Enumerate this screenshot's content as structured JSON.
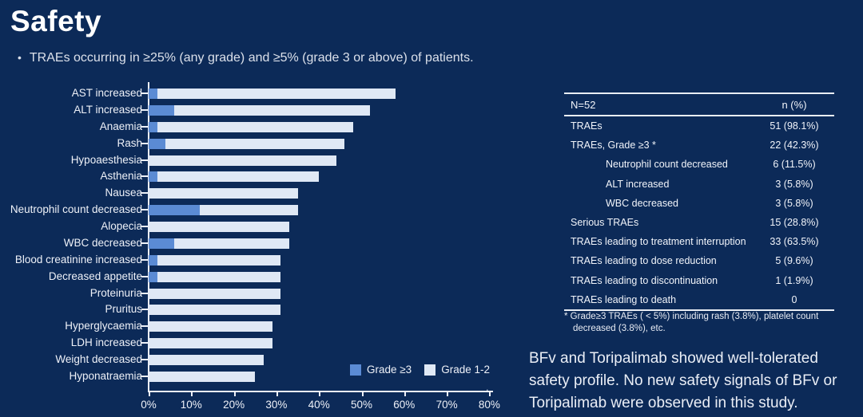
{
  "title": "Safety",
  "bullet": "TRAEs occurring in ≥25% (any grade) and ≥5% (grade 3 or above) of patients.",
  "bullet_marker": "•",
  "colors": {
    "background": "#0c2a58",
    "grade3_bar": "#5b8bd4",
    "grade12_bar": "#dfe8f5",
    "axis_line": "#e9edf4"
  },
  "chart_data": {
    "type": "bar",
    "orientation": "horizontal",
    "stacked": true,
    "title": "",
    "xlabel": "",
    "ylabel": "",
    "xlim": [
      0,
      80
    ],
    "x_tick_labels": [
      "0%",
      "10%",
      "20%",
      "30%",
      "40%",
      "50%",
      "60%",
      "70%",
      "80%"
    ],
    "grid": false,
    "legend_position": "bottom-right-inside",
    "categories": [
      "AST increased",
      "ALT increased",
      "Anaemia",
      "Rash",
      "Hypoaesthesia",
      "Asthenia",
      "Nausea",
      "Neutrophil count decreased",
      "Alopecia",
      "WBC decreased",
      "Blood creatinine increased",
      "Decreased appetite",
      "Proteinuria",
      "Pruritus",
      "Hyperglycaemia",
      "LDH increased",
      "Weight decreased",
      "Hyponatraemia"
    ],
    "series": [
      {
        "name": "Grade ≥3",
        "values": [
          2,
          6,
          2,
          4,
          0,
          2,
          0,
          12,
          0,
          6,
          2,
          2,
          0,
          0,
          0,
          0,
          0,
          0
        ]
      },
      {
        "name": "Grade 1-2",
        "values": [
          56,
          46,
          46,
          42,
          44,
          38,
          35,
          23,
          33,
          27,
          29,
          29,
          31,
          31,
          29,
          29,
          27,
          25
        ]
      }
    ],
    "totals_any_grade_pct": [
      58,
      52,
      48,
      46,
      44,
      40,
      35,
      35,
      33,
      33,
      31,
      31,
      31,
      31,
      29,
      29,
      27,
      25
    ]
  },
  "legend": {
    "items": [
      {
        "label": "Grade ≥3",
        "color": "#5b8bd4"
      },
      {
        "label": "Grade 1-2",
        "color": "#dfe8f5"
      }
    ]
  },
  "stray_mark": ".",
  "table": {
    "header": [
      "N=52",
      "n (%)"
    ],
    "rows": [
      {
        "label": "TRAEs",
        "value": "51 (98.1%)",
        "indent": 0
      },
      {
        "label": "TRAEs, Grade ≥3 *",
        "value": "22 (42.3%)",
        "indent": 0
      },
      {
        "label": "Neutrophil count decreased",
        "value": "6 (11.5%)",
        "indent": 1
      },
      {
        "label": "ALT increased",
        "value": "3 (5.8%)",
        "indent": 1
      },
      {
        "label": "WBC decreased",
        "value": "3 (5.8%)",
        "indent": 1
      },
      {
        "label": "Serious TRAEs",
        "value": "15 (28.8%)",
        "indent": 0
      },
      {
        "label": "TRAEs leading to treatment interruption",
        "value": "33 (63.5%)",
        "indent": 0
      },
      {
        "label": "TRAEs leading to dose reduction",
        "value": "5 (9.6%)",
        "indent": 0
      },
      {
        "label": "TRAEs leading to discontinuation",
        "value": "1 (1.9%)",
        "indent": 0
      },
      {
        "label": "TRAEs leading to death",
        "value": "0",
        "indent": 0
      }
    ],
    "footnote_lines": [
      "* Grade≥3 TRAEs ( < 5%) including rash (3.8%), platelet count",
      "decreased (3.8%), etc."
    ]
  },
  "summary_lines": [
    "BFv and Toripalimab showed well-tolerated",
    "safety profile. No new safety signals of BFv or",
    "Toripalimab were observed in this study."
  ]
}
